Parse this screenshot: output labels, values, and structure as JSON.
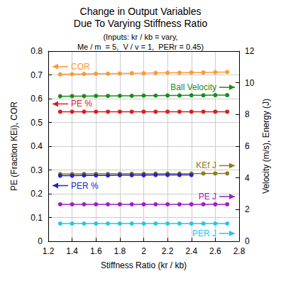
{
  "chart_data": {
    "type": "line",
    "title": "Change in Output Variables\nDue To Varying Stiffness Ratio",
    "subtitle": "(Inputs: kr / kb = vary,\nMe / m  = 5,  V / v = 1,  PERr = 0.45)",
    "x_label": "Stiffness Ratio (kr / kb)",
    "y_label": "PE (Fraction KEi), COR",
    "y2_label": "Velocity (m/s), Energy (J)",
    "x": [
      1.3,
      1.4,
      1.5,
      1.6,
      1.7,
      1.8,
      1.9,
      2.0,
      2.1,
      2.2,
      2.3,
      2.4,
      2.5,
      2.6,
      2.7
    ],
    "xlim": [
      1.2,
      2.8
    ],
    "xticks": [
      1.2,
      1.4,
      1.6,
      1.8,
      2,
      2.2,
      2.4,
      2.6,
      2.8
    ],
    "ylim": [
      0,
      0.8
    ],
    "yticks": [
      0,
      0.1,
      0.2,
      0.3,
      0.4,
      0.5,
      0.6,
      0.7,
      0.8
    ],
    "y2lim": [
      0,
      12
    ],
    "y2ticks": [
      0,
      2,
      4,
      6,
      8,
      10,
      12
    ],
    "grid": true,
    "marker": "circle",
    "series": [
      {
        "name": "COR",
        "color": "#ff9933",
        "values": [
          0.702,
          0.703,
          0.704,
          0.705,
          0.705,
          0.706,
          0.707,
          0.707,
          0.708,
          0.709,
          0.709,
          0.71,
          0.71,
          0.711,
          0.712
        ]
      },
      {
        "name": "Ball Velocity",
        "color": "#1a8c1a",
        "axis": "y2",
        "values": [
          9.15,
          9.16,
          9.16,
          9.17,
          9.17,
          9.18,
          9.18,
          9.19,
          9.19,
          9.2,
          9.2,
          9.21,
          9.21,
          9.22,
          9.22
        ]
      },
      {
        "name": "PE %",
        "color": "#d42020",
        "values": [
          0.545,
          0.545,
          0.545,
          0.545,
          0.545,
          0.545,
          0.545,
          0.545,
          0.545,
          0.545,
          0.545,
          0.545,
          0.545,
          0.545,
          0.545
        ]
      },
      {
        "name": "KEf J",
        "color": "#8c7a1e",
        "axis": "y2",
        "values": [
          4.24,
          4.24,
          4.25,
          4.25,
          4.25,
          4.26,
          4.26,
          4.26,
          4.27,
          4.27,
          4.27,
          4.27,
          4.28,
          4.28,
          4.28
        ]
      },
      {
        "name": "PER %",
        "color": "#2222cc",
        "values": [
          0.276,
          0.276,
          0.277,
          0.277,
          0.277,
          0.278,
          0.278,
          0.278,
          0.279,
          0.279,
          0.279,
          0.279,
          null,
          null,
          null
        ]
      },
      {
        "name": "PE J",
        "color": "#a020c0",
        "axis": "y2",
        "values": [
          2.33,
          2.33,
          2.33,
          2.33,
          2.33,
          2.33,
          2.33,
          2.33,
          2.33,
          2.33,
          2.33,
          2.33,
          2.33,
          2.33,
          2.33
        ]
      },
      {
        "name": "PER J",
        "color": "#22c4f0",
        "axis": "y2",
        "values": [
          1.12,
          1.12,
          1.12,
          1.12,
          1.12,
          1.12,
          1.12,
          1.12,
          1.12,
          1.12,
          1.12,
          1.12,
          1.12,
          1.12,
          1.12
        ]
      }
    ]
  }
}
